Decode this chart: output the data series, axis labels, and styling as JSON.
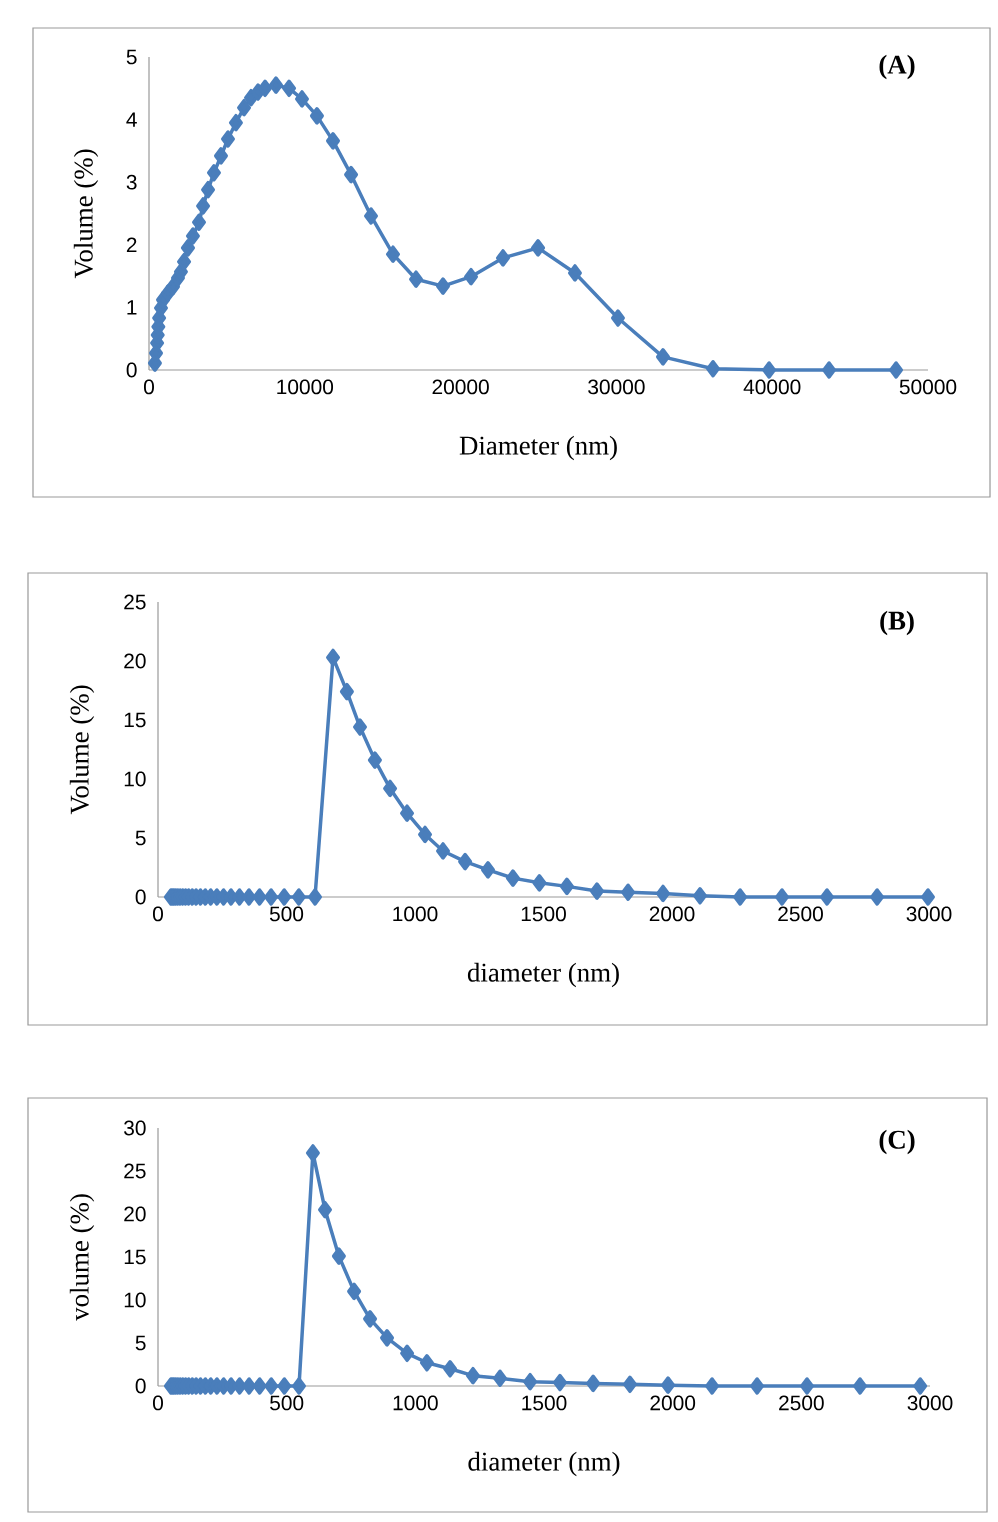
{
  "chart_data": [
    {
      "type": "line",
      "title": "(A)",
      "xlabel": "Diameter (nm)",
      "ylabel": "Volume (%)",
      "marker": "diamond",
      "line_style": "solid",
      "xlim": [
        0,
        50000
      ],
      "xticks": [
        0,
        10000,
        20000,
        30000,
        40000,
        50000
      ],
      "ylim": [
        0,
        5
      ],
      "yticks": [
        0,
        1,
        2,
        3,
        4,
        5
      ],
      "series": [
        {
          "color": "#4a7ebb",
          "x": [
            380,
            450,
            520,
            560,
            600,
            650,
            770,
            900,
            1220,
            1540,
            1860,
            2050,
            2250,
            2500,
            2820,
            3210,
            3470,
            3790,
            4170,
            4620,
            5070,
            5580,
            6100,
            6550,
            7000,
            7450,
            8150,
            8990,
            9820,
            10780,
            11810,
            12970,
            14250,
            15660,
            17140,
            18870,
            20670,
            22720,
            24970,
            27340,
            30100,
            32990,
            36200,
            39800,
            43650,
            47950
          ],
          "values": [
            0.11,
            0.27,
            0.43,
            0.56,
            0.69,
            0.83,
            0.99,
            1.12,
            1.23,
            1.33,
            1.47,
            1.57,
            1.73,
            1.95,
            2.14,
            2.36,
            2.62,
            2.88,
            3.15,
            3.42,
            3.69,
            3.95,
            4.19,
            4.35,
            4.44,
            4.5,
            4.55,
            4.5,
            4.33,
            4.06,
            3.66,
            3.12,
            2.46,
            1.85,
            1.45,
            1.34,
            1.49,
            1.79,
            1.95,
            1.55,
            0.83,
            0.21,
            0.02,
            0,
            0,
            0
          ]
        }
      ]
    },
    {
      "type": "line",
      "title": "(B)",
      "xlabel": "diameter (nm)",
      "ylabel": "Volume (%)",
      "marker": "diamond",
      "line_style": "solid",
      "xlim": [
        0,
        3000
      ],
      "xticks": [
        0,
        500,
        1000,
        1500,
        2000,
        2500,
        3000
      ],
      "ylim": [
        0,
        25
      ],
      "yticks": [
        0,
        5,
        10,
        15,
        20,
        25
      ],
      "series": [
        {
          "color": "#4a7ebb",
          "x": [
            50,
            56,
            62,
            69,
            77,
            86,
            96,
            107,
            119,
            133,
            148,
            165,
            184,
            205,
            229,
            255,
            284,
            317,
            354,
            395,
            440,
            491,
            548,
            611,
            681,
            735,
            786,
            844,
            903,
            969,
            1039,
            1109,
            1195,
            1284,
            1381,
            1484,
            1591,
            1708,
            1829,
            1965,
            2109,
            2265,
            2428,
            2603,
            2798,
            2996
          ],
          "values": [
            0,
            0,
            0,
            0,
            0,
            0,
            0,
            0,
            0,
            0,
            0,
            0,
            0,
            0,
            0,
            0,
            0,
            0,
            0,
            0,
            0,
            0,
            0,
            0,
            20.3,
            17.4,
            14.4,
            11.6,
            9.2,
            7.1,
            5.3,
            3.9,
            3.0,
            2.3,
            1.6,
            1.2,
            0.9,
            0.5,
            0.4,
            0.3,
            0.1,
            0,
            0,
            0,
            0,
            0
          ]
        }
      ]
    },
    {
      "type": "line",
      "title": "(C)",
      "xlabel": "diameter (nm)",
      "ylabel": "volume (%)",
      "marker": "diamond",
      "line_style": "solid",
      "xlim": [
        0,
        3000
      ],
      "xticks": [
        0,
        500,
        1000,
        1500,
        2000,
        2500,
        3000
      ],
      "ylim": [
        0,
        30
      ],
      "yticks": [
        0,
        5,
        10,
        15,
        20,
        25,
        30
      ],
      "series": [
        {
          "color": "#4a7ebb",
          "x": [
            50,
            56,
            62,
            69,
            77,
            86,
            96,
            107,
            119,
            133,
            148,
            165,
            184,
            205,
            229,
            255,
            284,
            317,
            354,
            395,
            440,
            491,
            548,
            602,
            649,
            703,
            762,
            824,
            890,
            968,
            1045,
            1135,
            1224,
            1329,
            1446,
            1562,
            1691,
            1834,
            1982,
            2153,
            2328,
            2522,
            2728,
            2962
          ],
          "values": [
            0,
            0,
            0,
            0,
            0,
            0,
            0,
            0,
            0,
            0,
            0,
            0,
            0,
            0,
            0,
            0,
            0,
            0,
            0,
            0,
            0,
            0,
            0,
            27.1,
            20.5,
            15.1,
            11.0,
            7.8,
            5.6,
            3.8,
            2.7,
            2.0,
            1.2,
            0.9,
            0.5,
            0.4,
            0.3,
            0.2,
            0.1,
            0,
            0,
            0,
            0,
            0
          ]
        }
      ]
    }
  ]
}
